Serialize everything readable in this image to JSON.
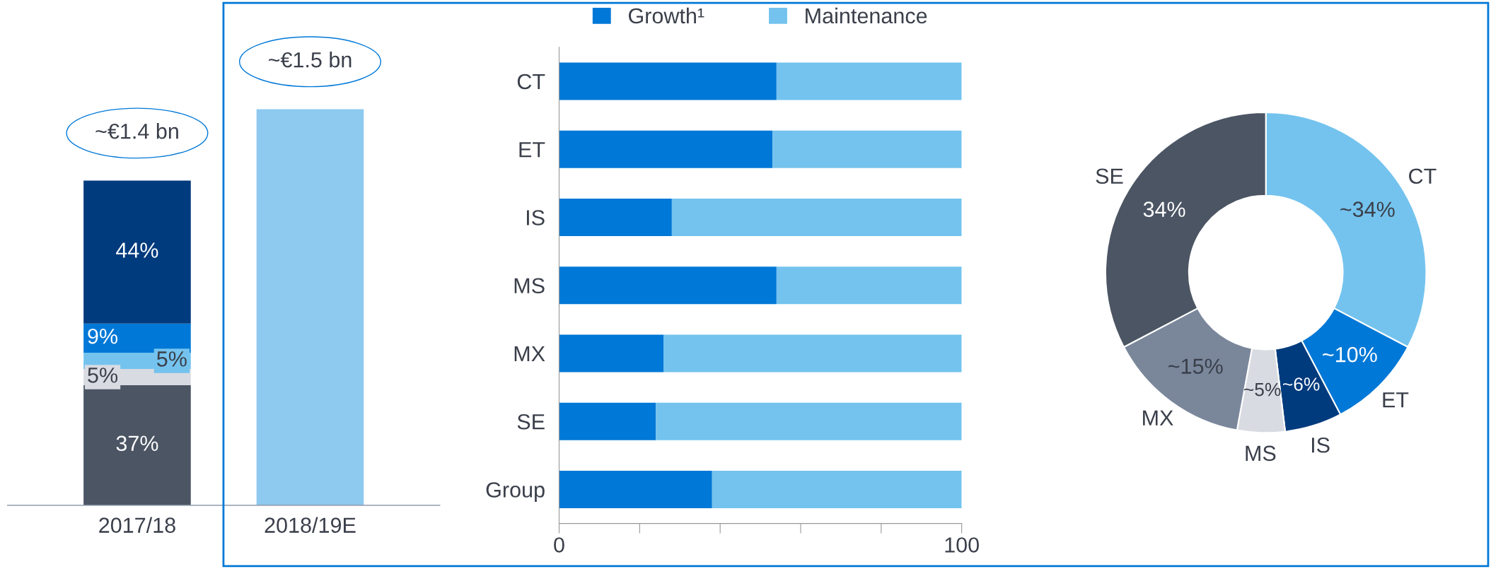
{
  "chart_data": [
    {
      "type": "bar",
      "stacked": true,
      "categories": [
        "2017/18",
        "2018/19E"
      ],
      "series": [
        {
          "color": "#4b5563",
          "values": [
            37,
            null
          ],
          "value_labels": [
            "37%",
            null
          ]
        },
        {
          "color": "#d9dbe2",
          "values": [
            5,
            null
          ],
          "value_labels": [
            "5%",
            null
          ]
        },
        {
          "color": "#74c3ee",
          "values": [
            5,
            null
          ],
          "value_labels": [
            "5%",
            null
          ]
        },
        {
          "color": "#0078d7",
          "values": [
            9,
            null
          ],
          "value_labels": [
            "9%",
            null
          ]
        },
        {
          "color": "#003b7d",
          "values": [
            44,
            null
          ],
          "value_labels": [
            "44%",
            null
          ]
        },
        {
          "color": "#8ec9f0",
          "values": [
            null,
            122
          ]
        }
      ],
      "annotations": [
        "~€1.4 bn",
        "~€1.5 bn"
      ]
    },
    {
      "type": "bar",
      "orientation": "horizontal",
      "stacked": true,
      "categories": [
        "CT",
        "ET",
        "IS",
        "MS",
        "MX",
        "SE",
        "Group"
      ],
      "series": [
        {
          "name": "Growth¹",
          "color": "#0078d7",
          "values": [
            54,
            53,
            28,
            54,
            26,
            24,
            38
          ]
        },
        {
          "name": "Maintenance",
          "color": "#74c3ee",
          "values": [
            46,
            47,
            72,
            46,
            74,
            76,
            62
          ]
        }
      ],
      "xlim": [
        0,
        100
      ],
      "xticks": [
        0,
        {
          "value": 20,
          "label": null
        },
        {
          "value": 40,
          "label": null
        },
        {
          "value": 60,
          "label": null
        },
        {
          "value": 80,
          "label": null
        },
        100
      ],
      "legend": "top"
    },
    {
      "type": "donut",
      "categories": [
        "CT",
        "ET",
        "IS",
        "MS",
        "MX",
        "SE"
      ],
      "values": [
        34,
        10,
        6,
        5,
        15,
        34
      ],
      "value_labels": [
        "~34%",
        "~10%",
        "~6%",
        "~5%",
        "~15%",
        "34%"
      ],
      "colors": [
        "#74c3ee",
        "#0078d7",
        "#003b7d",
        "#d9dbe2",
        "#7a879b",
        "#4b5563"
      ]
    }
  ]
}
